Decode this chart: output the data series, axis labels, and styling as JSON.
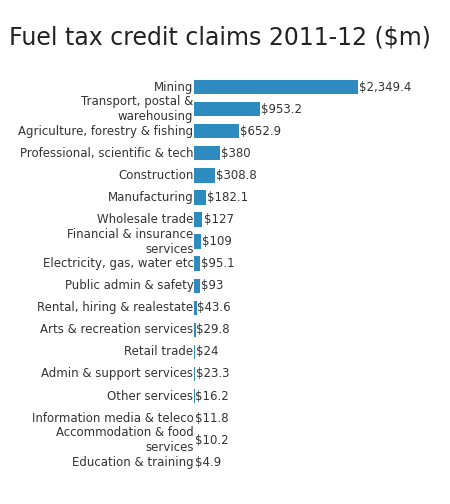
{
  "title": "Fuel tax credit claims 2011-12 ($m)",
  "categories": [
    "Education & training",
    "Accommodation & food\nservices",
    "Information media & teleco",
    "Other services",
    "Admin & support services",
    "Retail trade",
    "Arts & recreation services",
    "Rental, hiring & realestate",
    "Public admin & safety",
    "Electricity, gas, water etc",
    "Financial & insurance\nservices",
    "Wholesale trade",
    "Manufacturing",
    "Construction",
    "Professional, scientific & tech",
    "Agriculture, forestry & fishing",
    "Transport, postal &\nwarehousing",
    "Mining"
  ],
  "values": [
    4.9,
    10.2,
    11.8,
    16.2,
    23.3,
    24,
    29.8,
    43.6,
    93,
    95.1,
    109,
    127,
    182.1,
    308.8,
    380,
    652.9,
    953.2,
    2349.4
  ],
  "labels": [
    "$4.9",
    "$10.2",
    "$11.8",
    "$16.2",
    "$23.3",
    "$24",
    "$29.8",
    "$43.6",
    "$93",
    "$95.1",
    "$109",
    "$127",
    "$182.1",
    "$308.8",
    "$380",
    "$652.9",
    "$953.2",
    "$2,349.4"
  ],
  "bar_color": "#2e8bbf",
  "background_color": "#ffffff",
  "title_fontsize": 17,
  "label_fontsize": 8.5,
  "tick_fontsize": 8.5,
  "xlim_max": 2900
}
